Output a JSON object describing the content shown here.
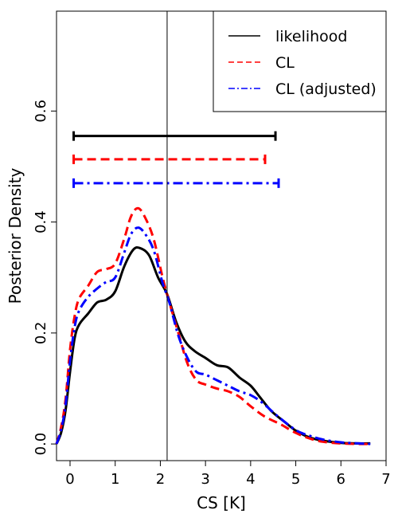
{
  "chart_data": {
    "type": "line",
    "title": "",
    "xlabel": "CS [K]",
    "ylabel": "Posterior Density",
    "xlim": [
      -0.3,
      7.0
    ],
    "ylim": [
      -0.03,
      0.78
    ],
    "xticks": [
      "0",
      "1",
      "2",
      "3",
      "4",
      "5",
      "6",
      "7"
    ],
    "yticks": [
      "0.0",
      "0.2",
      "0.4",
      "0.6"
    ],
    "vline_x": 2.15,
    "legend_position": "top-right",
    "series": [
      {
        "name": "likelihood",
        "color": "#000000",
        "dash": "solid",
        "interval": {
          "low": 0.08,
          "high": 4.55,
          "y": 0.555
        },
        "points": [
          [
            -0.3,
            0.0
          ],
          [
            -0.2,
            0.02
          ],
          [
            -0.1,
            0.06
          ],
          [
            0.0,
            0.13
          ],
          [
            0.1,
            0.19
          ],
          [
            0.2,
            0.215
          ],
          [
            0.4,
            0.235
          ],
          [
            0.6,
            0.255
          ],
          [
            0.8,
            0.26
          ],
          [
            1.0,
            0.275
          ],
          [
            1.2,
            0.32
          ],
          [
            1.4,
            0.35
          ],
          [
            1.55,
            0.353
          ],
          [
            1.75,
            0.34
          ],
          [
            1.95,
            0.3
          ],
          [
            2.15,
            0.27
          ],
          [
            2.35,
            0.22
          ],
          [
            2.55,
            0.185
          ],
          [
            2.75,
            0.168
          ],
          [
            3.0,
            0.155
          ],
          [
            3.25,
            0.142
          ],
          [
            3.5,
            0.138
          ],
          [
            3.75,
            0.12
          ],
          [
            4.0,
            0.105
          ],
          [
            4.2,
            0.085
          ],
          [
            4.45,
            0.06
          ],
          [
            4.75,
            0.04
          ],
          [
            5.0,
            0.024
          ],
          [
            5.3,
            0.012
          ],
          [
            5.6,
            0.006
          ],
          [
            6.0,
            0.002
          ],
          [
            6.4,
            0.001
          ],
          [
            6.65,
            0.001
          ]
        ]
      },
      {
        "name": "CL",
        "color": "#ff0000",
        "dash": "dashed",
        "interval": {
          "low": 0.08,
          "high": 4.32,
          "y": 0.513
        },
        "points": [
          [
            -0.3,
            0.0
          ],
          [
            -0.2,
            0.03
          ],
          [
            -0.1,
            0.08
          ],
          [
            0.0,
            0.17
          ],
          [
            0.1,
            0.23
          ],
          [
            0.2,
            0.262
          ],
          [
            0.4,
            0.285
          ],
          [
            0.6,
            0.31
          ],
          [
            0.8,
            0.315
          ],
          [
            1.0,
            0.325
          ],
          [
            1.2,
            0.37
          ],
          [
            1.35,
            0.41
          ],
          [
            1.5,
            0.425
          ],
          [
            1.65,
            0.41
          ],
          [
            1.85,
            0.37
          ],
          [
            2.05,
            0.3
          ],
          [
            2.2,
            0.255
          ],
          [
            2.4,
            0.2
          ],
          [
            2.6,
            0.145
          ],
          [
            2.8,
            0.115
          ],
          [
            3.0,
            0.107
          ],
          [
            3.25,
            0.1
          ],
          [
            3.5,
            0.095
          ],
          [
            3.75,
            0.085
          ],
          [
            4.0,
            0.068
          ],
          [
            4.3,
            0.05
          ],
          [
            4.65,
            0.036
          ],
          [
            5.0,
            0.02
          ],
          [
            5.3,
            0.01
          ],
          [
            5.6,
            0.004
          ],
          [
            6.0,
            0.001
          ],
          [
            6.4,
            0.0
          ],
          [
            6.65,
            0.0
          ]
        ]
      },
      {
        "name": "CL (adjusted)",
        "color": "#0000ff",
        "dash": "dotdash",
        "interval": {
          "low": 0.08,
          "high": 4.62,
          "y": 0.47
        },
        "points": [
          [
            -0.3,
            0.0
          ],
          [
            -0.2,
            0.025
          ],
          [
            -0.1,
            0.07
          ],
          [
            0.0,
            0.15
          ],
          [
            0.1,
            0.21
          ],
          [
            0.2,
            0.24
          ],
          [
            0.4,
            0.265
          ],
          [
            0.6,
            0.28
          ],
          [
            0.8,
            0.292
          ],
          [
            1.0,
            0.3
          ],
          [
            1.2,
            0.345
          ],
          [
            1.35,
            0.378
          ],
          [
            1.5,
            0.39
          ],
          [
            1.65,
            0.38
          ],
          [
            1.85,
            0.35
          ],
          [
            2.05,
            0.29
          ],
          [
            2.2,
            0.255
          ],
          [
            2.4,
            0.195
          ],
          [
            2.6,
            0.155
          ],
          [
            2.8,
            0.13
          ],
          [
            3.0,
            0.125
          ],
          [
            3.25,
            0.115
          ],
          [
            3.5,
            0.105
          ],
          [
            3.75,
            0.095
          ],
          [
            4.0,
            0.088
          ],
          [
            4.25,
            0.075
          ],
          [
            4.6,
            0.05
          ],
          [
            5.0,
            0.025
          ],
          [
            5.3,
            0.015
          ],
          [
            5.6,
            0.008
          ],
          [
            6.0,
            0.003
          ],
          [
            6.4,
            0.001
          ],
          [
            6.65,
            0.0
          ]
        ]
      }
    ]
  }
}
